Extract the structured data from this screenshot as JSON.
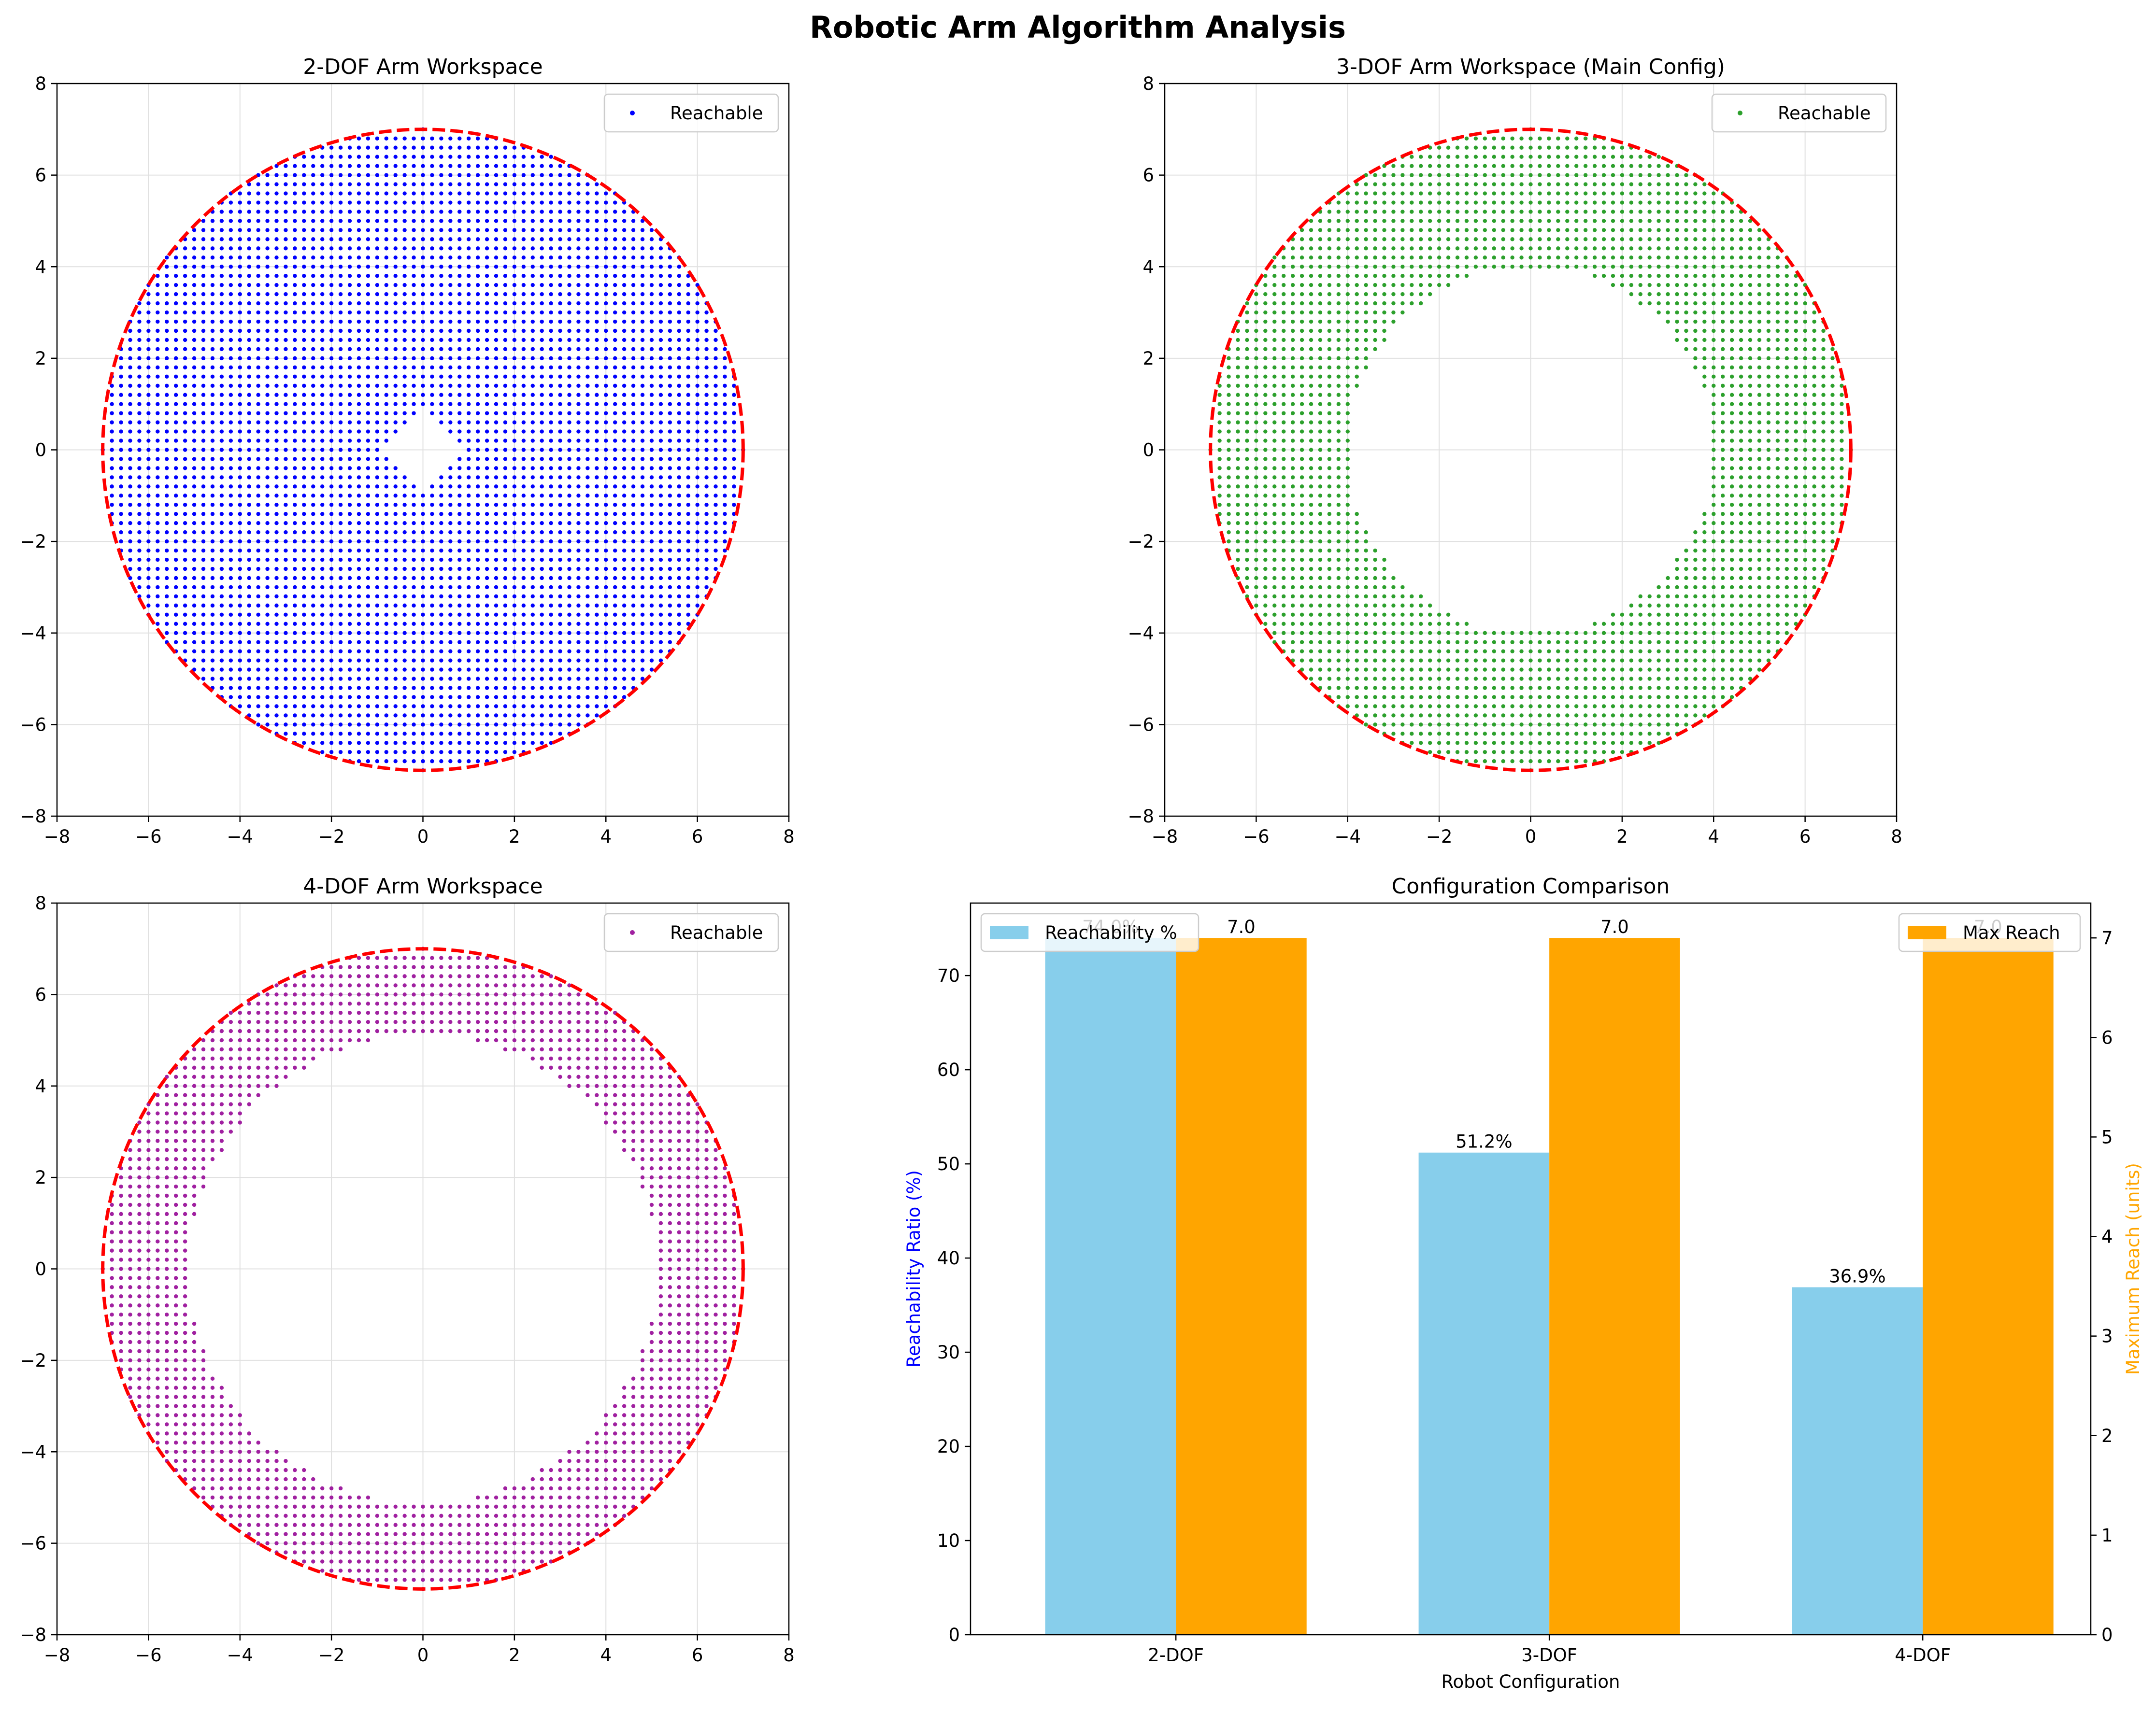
{
  "figure": {
    "title": "Robotic Arm Algorithm Analysis"
  },
  "chart_data": [
    {
      "type": "scatter",
      "title": "2-DOF Arm Workspace",
      "xlim": [
        -8,
        8
      ],
      "ylim": [
        -8,
        8
      ],
      "xticks": [
        -8,
        -6,
        -4,
        -2,
        0,
        2,
        4,
        6,
        8
      ],
      "yticks": [
        -8,
        -6,
        -4,
        -2,
        0,
        2,
        4,
        6,
        8
      ],
      "grid": true,
      "legend": {
        "label": "Reachable",
        "position": "upper right"
      },
      "series": [
        {
          "name": "Reachable",
          "color": "#0000ff",
          "grid_step": 0.2,
          "region": {
            "outer_radius": 7.0,
            "inner_shape": "diamond",
            "inner_radius": 1.0
          }
        }
      ],
      "boundary": {
        "shape": "circle",
        "radius": 7.0,
        "style": "dashed",
        "color": "#ff0000"
      }
    },
    {
      "type": "scatter",
      "title": "3-DOF Arm Workspace (Main Config)",
      "xlim": [
        -8,
        8
      ],
      "ylim": [
        -8,
        8
      ],
      "xticks": [
        -8,
        -6,
        -4,
        -2,
        0,
        2,
        4,
        6,
        8
      ],
      "yticks": [
        -8,
        -6,
        -4,
        -2,
        0,
        2,
        4,
        6,
        8
      ],
      "grid": true,
      "legend": {
        "label": "Reachable",
        "position": "upper right"
      },
      "series": [
        {
          "name": "Reachable",
          "color": "#2ca02c",
          "grid_step": 0.2,
          "region": {
            "outer_radius": 7.0,
            "inner_shape": "circle",
            "inner_radius": 4.0
          }
        }
      ],
      "boundary": {
        "shape": "circle",
        "radius": 7.0,
        "style": "dashed",
        "color": "#ff0000"
      }
    },
    {
      "type": "scatter",
      "title": "4-DOF Arm Workspace",
      "xlim": [
        -8,
        8
      ],
      "ylim": [
        -8,
        8
      ],
      "xticks": [
        -8,
        -6,
        -4,
        -2,
        0,
        2,
        4,
        6,
        8
      ],
      "yticks": [
        -8,
        -6,
        -4,
        -2,
        0,
        2,
        4,
        6,
        8
      ],
      "grid": true,
      "legend": {
        "label": "Reachable",
        "position": "upper right"
      },
      "series": [
        {
          "name": "Reachable",
          "color": "#a020a0",
          "grid_step": 0.2,
          "region": {
            "outer_radius": 7.0,
            "inner_shape": "circle",
            "inner_radius": 5.1
          }
        }
      ],
      "boundary": {
        "shape": "circle",
        "radius": 7.0,
        "style": "dashed",
        "color": "#ff0000"
      }
    },
    {
      "type": "bar",
      "title": "Configuration Comparison",
      "categories": [
        "2-DOF",
        "3-DOF",
        "4-DOF"
      ],
      "xlabel": "Robot Configuration",
      "ylabel": "Reachability Ratio (%)",
      "ylabel_right": "Maximum Reach (units)",
      "ylim": [
        0,
        77.7
      ],
      "ylim_right": [
        0,
        7.35
      ],
      "yticks": [
        0,
        10,
        20,
        30,
        40,
        50,
        60,
        70
      ],
      "yticks_right": [
        0,
        1,
        2,
        3,
        4,
        5,
        6,
        7
      ],
      "series": [
        {
          "name": "Reachability %",
          "axis": "left",
          "color": "#87ceeb",
          "values": [
            74.0,
            51.2,
            36.9
          ],
          "labels": [
            "74.0%",
            "51.2%",
            "36.9%"
          ]
        },
        {
          "name": "Max Reach",
          "axis": "right",
          "color": "#ffa500",
          "values": [
            7.0,
            7.0,
            7.0
          ],
          "labels": [
            "7.0",
            "7.0",
            "7.0"
          ]
        }
      ],
      "legend_left": {
        "label": "Reachability %",
        "position": "upper left"
      },
      "legend_right": {
        "label": "Max Reach",
        "position": "upper right"
      },
      "colors": {
        "left_label": "#0000ff",
        "right_label": "#ffa500"
      }
    }
  ]
}
